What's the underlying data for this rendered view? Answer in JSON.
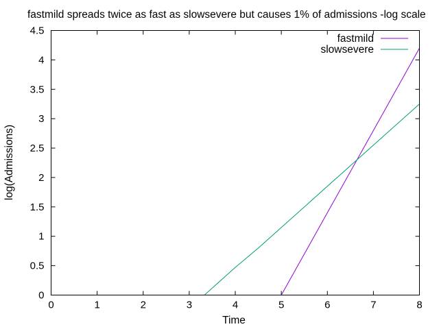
{
  "chart_data": {
    "type": "line",
    "title": "fastmild spreads twice as fast as slowsevere but causes 1% of admissions -log scale",
    "xlabel": "Time",
    "ylabel": "log(Admissions)",
    "xlim": [
      0,
      8
    ],
    "ylim": [
      0,
      4.5
    ],
    "xticks": [
      0,
      1,
      2,
      3,
      4,
      5,
      6,
      7,
      8
    ],
    "yticks": [
      0,
      0.5,
      1,
      1.5,
      2,
      2.5,
      3,
      3.5,
      4,
      4.5
    ],
    "xtick_labels": [
      "0",
      "1",
      "2",
      "3",
      "4",
      "5",
      "6",
      "7",
      "8"
    ],
    "ytick_labels": [
      "0",
      "0.5",
      "1",
      "1.5",
      "2",
      "2.5",
      "3",
      "3.5",
      "4",
      "4.5"
    ],
    "grid": false,
    "legend_position": "top-right",
    "series": [
      {
        "name": "fastmild",
        "color": "#9400d3",
        "x": [
          5.0,
          5.5,
          6.0,
          6.5,
          7.0,
          7.5,
          8.0
        ],
        "y": [
          0.0,
          0.7,
          1.4,
          2.1,
          2.8,
          3.5,
          4.2
        ]
      },
      {
        "name": "slowsevere",
        "color": "#009e73",
        "x": [
          3.33,
          4.0,
          4.5,
          5.0,
          5.5,
          6.0,
          6.5,
          7.0,
          7.5,
          8.0
        ],
        "y": [
          0.0,
          0.47,
          0.8,
          1.15,
          1.5,
          1.85,
          2.2,
          2.55,
          2.9,
          3.25
        ]
      }
    ]
  }
}
